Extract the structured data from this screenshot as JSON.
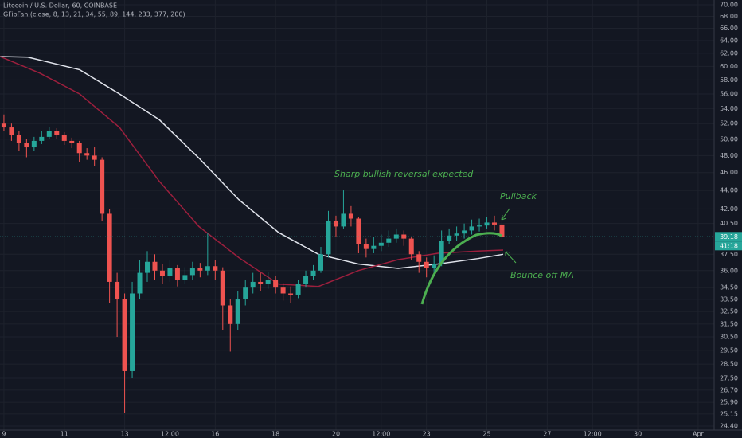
{
  "chart_data": {
    "type": "candlestick",
    "title": "Litecoin / U.S. Dollar, 60, COINBASE",
    "subtitle": "GFibFan (close, 8, 13, 21, 34, 55, 89, 144, 233, 377, 200)",
    "log_scale": true,
    "grid": true,
    "up_color": "#26a69a",
    "down_color": "#ef5350",
    "xlim": [
      8.87,
      32.53
    ],
    "ylim": [
      24.16,
      70.84
    ],
    "xticks": [
      9,
      11,
      13,
      {
        "value": 14.5,
        "label": "12:00"
      },
      16,
      18,
      20,
      {
        "value": 21.5,
        "label": "12:00"
      },
      23,
      25,
      27,
      {
        "value": 28.5,
        "label": "12:00"
      },
      30,
      {
        "value": 32,
        "label": "Apr"
      }
    ],
    "yticks": [
      {
        "value": 70,
        "label": "70.00"
      },
      {
        "value": 68,
        "label": "68.00"
      },
      {
        "value": 66,
        "label": "66.00"
      },
      {
        "value": 64,
        "label": "64.00"
      },
      {
        "value": 62,
        "label": "62.00"
      },
      {
        "value": 60,
        "label": "60.00"
      },
      {
        "value": 58,
        "label": "58.00"
      },
      {
        "value": 56,
        "label": "56.00"
      },
      {
        "value": 54,
        "label": "54.00"
      },
      {
        "value": 52,
        "label": "52.00"
      },
      {
        "value": 50,
        "label": "50.00"
      },
      {
        "value": 48,
        "label": "48.00"
      },
      {
        "value": 46,
        "label": "46.00"
      },
      {
        "value": 44,
        "label": "44.00"
      },
      {
        "value": 42,
        "label": "42.00"
      },
      {
        "value": 40.5,
        "label": "40.50"
      },
      {
        "value": 37.5,
        "label": "37.50"
      },
      {
        "value": 36,
        "label": "36.00"
      },
      {
        "value": 34.5,
        "label": "34.50"
      },
      {
        "value": 33.5,
        "label": "33.50"
      },
      {
        "value": 32.5,
        "label": "32.50"
      },
      {
        "value": 31.5,
        "label": "31.50"
      },
      {
        "value": 30.5,
        "label": "30.50"
      },
      {
        "value": 29.5,
        "label": "29.50"
      },
      {
        "value": 28.5,
        "label": "28.50"
      },
      {
        "value": 27.5,
        "label": "27.50"
      },
      {
        "value": 26.7,
        "label": "26.70"
      },
      {
        "value": 25.9,
        "label": "25.90"
      },
      {
        "value": 25.15,
        "label": "25.15"
      },
      {
        "value": 24.4,
        "label": "24.40"
      }
    ],
    "last_price": {
      "value": 39.18,
      "label": "39.18"
    },
    "countdown": "41:18",
    "candles": {
      "x": [
        9,
        9.25,
        9.5,
        9.75,
        10,
        10.25,
        10.5,
        10.75,
        11,
        11.25,
        11.5,
        11.75,
        12,
        12.25,
        12.5,
        12.75,
        13,
        13.25,
        13.5,
        13.75,
        14,
        14.25,
        14.5,
        14.75,
        15,
        15.25,
        15.5,
        15.75,
        16,
        16.25,
        16.5,
        16.75,
        17,
        17.25,
        17.5,
        17.75,
        18,
        18.25,
        18.5,
        18.75,
        19,
        19.25,
        19.5,
        19.75,
        20,
        20.25,
        20.5,
        20.75,
        21,
        21.25,
        21.5,
        21.75,
        22,
        22.25,
        22.5,
        22.75,
        23,
        23.25,
        23.5,
        23.75,
        24,
        24.25,
        24.5,
        24.75,
        25,
        25.25,
        25.5
      ],
      "open": [
        52.0,
        51.5,
        50.5,
        49.5,
        49.0,
        49.8,
        50.3,
        51.0,
        50.5,
        49.8,
        49.5,
        48.3,
        48.0,
        47.5,
        41.5,
        35.0,
        33.5,
        28.0,
        34.0,
        35.8,
        36.8,
        36.0,
        35.5,
        36.2,
        35.2,
        35.6,
        36.2,
        36.0,
        36.4,
        36.0,
        33.0,
        31.5,
        33.5,
        34.5,
        35.0,
        34.8,
        35.2,
        34.5,
        34.0,
        33.9,
        34.8,
        35.5,
        36.0,
        37.5,
        40.8,
        40.2,
        41.5,
        41.0,
        38.5,
        38.0,
        38.3,
        38.6,
        39.0,
        39.4,
        39.0,
        37.5,
        36.8,
        36.2,
        36.6,
        38.8,
        39.3,
        39.5,
        39.8,
        40.2,
        40.3,
        40.6,
        40.4
      ],
      "high": [
        53.2,
        52.0,
        51.0,
        50.0,
        50.3,
        51.0,
        51.6,
        51.4,
        50.9,
        50.2,
        49.8,
        48.9,
        49.0,
        47.8,
        42.0,
        35.8,
        34.0,
        35.0,
        37.0,
        37.8,
        37.5,
        36.6,
        37.0,
        36.5,
        36.3,
        36.8,
        36.7,
        39.5,
        37.0,
        36.3,
        33.5,
        34.2,
        35.2,
        35.8,
        35.8,
        35.9,
        35.5,
        34.9,
        34.6,
        35.2,
        36.0,
        36.5,
        38.2,
        41.8,
        41.3,
        44.0,
        42.3,
        41.2,
        39.0,
        39.2,
        39.4,
        39.8,
        40.0,
        39.8,
        39.2,
        37.8,
        37.2,
        37.4,
        39.8,
        40.0,
        40.2,
        40.5,
        40.9,
        41.0,
        41.2,
        41.3,
        41.0
      ],
      "low": [
        51.0,
        49.8,
        48.6,
        47.8,
        48.6,
        49.4,
        50.0,
        50.0,
        49.3,
        48.9,
        47.2,
        47.5,
        46.8,
        40.8,
        33.2,
        30.5,
        25.2,
        27.5,
        33.5,
        35.0,
        35.2,
        34.8,
        35.0,
        34.6,
        34.8,
        35.2,
        35.4,
        35.6,
        35.2,
        31.0,
        29.4,
        31.0,
        33.0,
        34.0,
        34.2,
        34.4,
        34.0,
        33.4,
        33.2,
        33.6,
        34.5,
        35.2,
        35.8,
        37.2,
        39.2,
        40.0,
        40.2,
        37.6,
        37.2,
        37.6,
        37.8,
        38.2,
        38.6,
        38.3,
        37.0,
        35.8,
        35.4,
        35.8,
        36.4,
        38.5,
        38.8,
        39.0,
        39.4,
        39.7,
        40.0,
        39.8,
        38.9
      ],
      "close": [
        51.5,
        50.5,
        49.5,
        49.0,
        49.8,
        50.3,
        51.0,
        50.5,
        49.8,
        49.5,
        48.3,
        48.0,
        47.5,
        41.5,
        35.0,
        33.5,
        28.0,
        34.0,
        35.8,
        36.8,
        36.0,
        35.5,
        36.2,
        35.2,
        35.6,
        36.2,
        36.0,
        36.4,
        36.0,
        33.0,
        31.5,
        33.5,
        34.5,
        35.0,
        34.8,
        35.2,
        34.5,
        34.0,
        33.9,
        34.8,
        35.5,
        36.0,
        37.5,
        40.8,
        40.2,
        41.5,
        41.0,
        38.5,
        38.0,
        38.3,
        38.6,
        39.0,
        39.4,
        39.0,
        37.5,
        36.8,
        36.2,
        36.6,
        38.8,
        39.3,
        39.5,
        39.8,
        40.2,
        40.3,
        40.6,
        40.4,
        39.2
      ]
    },
    "series": [
      {
        "color": "#e0e3eb",
        "x": [
          8.87,
          9.79,
          11.51,
          12.83,
          14.15,
          15.46,
          16.78,
          18.1,
          19.42,
          20.74,
          22.06,
          23.38,
          24.7,
          25.54
        ],
        "values": [
          61.5,
          61.4,
          59.5,
          56.0,
          52.5,
          47.7,
          43.0,
          39.6,
          37.5,
          36.6,
          36.2,
          36.6,
          37.1,
          37.5
        ]
      },
      {
        "color": "#9c1f3d",
        "x": [
          8.87,
          10.19,
          11.51,
          12.83,
          14.15,
          15.46,
          16.78,
          18.1,
          19.42,
          20.74,
          22.06,
          23.38,
          24.7,
          25.54
        ],
        "values": [
          61.5,
          59.0,
          56.0,
          51.5,
          45.0,
          40.2,
          37.2,
          34.8,
          34.6,
          36.0,
          37.0,
          37.6,
          37.8,
          37.9
        ]
      }
    ],
    "annotations": [
      "Sharp bullish reversal expected",
      "Pullback",
      "Bounce off MA"
    ]
  }
}
